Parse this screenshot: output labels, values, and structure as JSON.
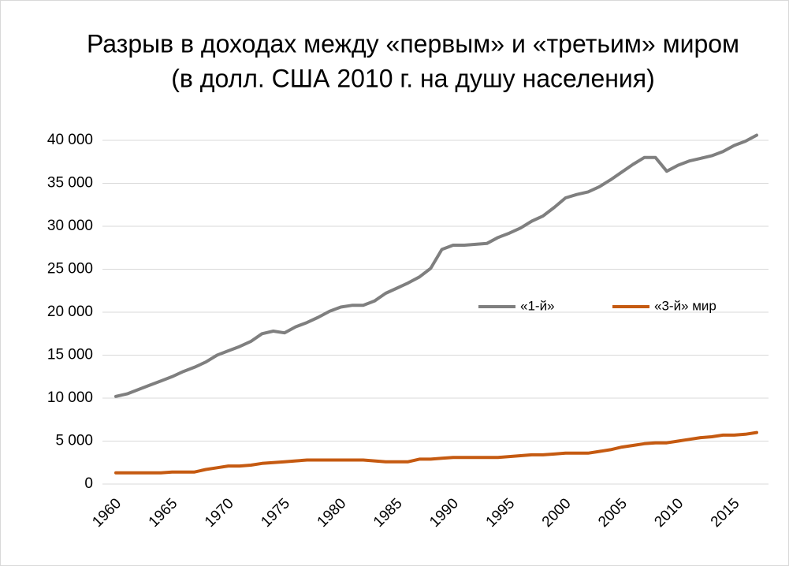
{
  "chart_data": {
    "type": "line",
    "title": "Разрыв в доходах между «первым» и «третьим» миром",
    "subtitle": "(в долл. США 2010 г. на душу населения)",
    "x": [
      1960,
      1961,
      1962,
      1963,
      1964,
      1965,
      1966,
      1967,
      1968,
      1969,
      1970,
      1971,
      1972,
      1973,
      1974,
      1975,
      1976,
      1977,
      1978,
      1979,
      1980,
      1981,
      1982,
      1983,
      1984,
      1985,
      1986,
      1987,
      1988,
      1989,
      1990,
      1991,
      1992,
      1993,
      1994,
      1995,
      1996,
      1997,
      1998,
      1999,
      2000,
      2001,
      2002,
      2003,
      2004,
      2005,
      2006,
      2007,
      2008,
      2009,
      2010,
      2011,
      2012,
      2013,
      2014,
      2015,
      2016,
      2017
    ],
    "series": [
      {
        "name": "«1-й»",
        "color": "#7f7f7f",
        "values": [
          10200,
          10500,
          11000,
          11500,
          12000,
          12500,
          13100,
          13600,
          14200,
          15000,
          15500,
          16000,
          16600,
          17500,
          17800,
          17600,
          18300,
          18800,
          19400,
          20100,
          20600,
          20800,
          20800,
          21300,
          22200,
          22800,
          23400,
          24100,
          25100,
          27300,
          27800,
          27800,
          27900,
          28000,
          28700,
          29200,
          29800,
          30600,
          31200,
          32200,
          33300,
          33700,
          34000,
          34600,
          35400,
          36300,
          37200,
          38000,
          38000,
          36400,
          37100,
          37600,
          37900,
          38200,
          38700,
          39400,
          39900,
          40600
        ]
      },
      {
        "name": "«3-й» мир",
        "color": "#c55a11",
        "values": [
          1300,
          1300,
          1300,
          1300,
          1300,
          1400,
          1400,
          1400,
          1700,
          1900,
          2100,
          2100,
          2200,
          2400,
          2500,
          2600,
          2700,
          2800,
          2800,
          2800,
          2800,
          2800,
          2800,
          2700,
          2600,
          2600,
          2600,
          2900,
          2900,
          3000,
          3100,
          3100,
          3100,
          3100,
          3100,
          3200,
          3300,
          3400,
          3400,
          3500,
          3600,
          3600,
          3600,
          3800,
          4000,
          4300,
          4500,
          4700,
          4800,
          4800,
          5000,
          5200,
          5400,
          5500,
          5700,
          5700,
          5800,
          6000
        ]
      }
    ],
    "xlim": [
      1960,
      2017
    ],
    "xticks": [
      1960,
      1965,
      1970,
      1975,
      1980,
      1985,
      1990,
      1995,
      2000,
      2005,
      2010,
      2015
    ],
    "ylim": [
      0,
      40000
    ],
    "yticks": [
      0,
      {
        "value": 5000,
        "label": "5 000"
      },
      {
        "value": 10000,
        "label": "10 000"
      },
      {
        "value": 15000,
        "label": "15 000"
      },
      {
        "value": 20000,
        "label": "20 000"
      },
      {
        "value": 25000,
        "label": "25 000"
      },
      {
        "value": 30000,
        "label": "30 000"
      },
      {
        "value": 35000,
        "label": "35 000"
      },
      {
        "value": 40000,
        "label": "40 000"
      }
    ],
    "grid": true
  }
}
